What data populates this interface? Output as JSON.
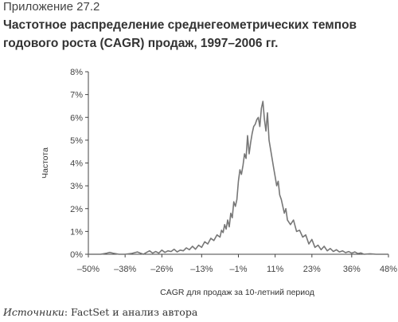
{
  "header": {
    "exhibit": "Приложение 27.2",
    "title": "Частотное распределение среднегеометрических темпов годового роста (CAGR) продаж, 1997–2006 гг."
  },
  "source": {
    "label": "Источники",
    "text": ": FactSet и анализ автора"
  },
  "chart_data": {
    "type": "line",
    "title": "Частотное распределение среднегеометрических темпов годового роста (CAGR) продаж, 1997–2006 гг.",
    "xlabel": "CAGR для продаж за 10-летний период",
    "ylabel": "Частота",
    "xlim": [
      -50,
      48
    ],
    "ylim": [
      0,
      8
    ],
    "x_ticks": [
      -50,
      -38,
      -26,
      -13,
      -1,
      11,
      23,
      36,
      48
    ],
    "x_tick_labels": [
      "–50%",
      "–38%",
      "–26%",
      "–13%",
      "–1%",
      "11%",
      "23%",
      "36%",
      "48%"
    ],
    "y_ticks": [
      0,
      1,
      2,
      3,
      4,
      5,
      6,
      7,
      8
    ],
    "y_tick_labels": [
      "0%",
      "1%",
      "2%",
      "3%",
      "4%",
      "5%",
      "6%",
      "7%",
      "8%"
    ],
    "grid": false,
    "line_color": "#777777",
    "series": [
      {
        "x": [
          -50,
          -46,
          -44,
          -43,
          -42,
          -40,
          -38,
          -36,
          -34,
          -33,
          -32,
          -31,
          -30,
          -29,
          -28,
          -27,
          -26,
          -25,
          -24,
          -23,
          -22,
          -21,
          -20,
          -19,
          -18,
          -17,
          -16,
          -15,
          -14,
          -13,
          -12,
          -11,
          -10,
          -9,
          -8,
          -7,
          -6.5,
          -6,
          -5.5,
          -5,
          -4.5,
          -4,
          -3.5,
          -3,
          -2.5,
          -2,
          -1.5,
          -1,
          -0.5,
          0,
          0.5,
          1,
          1.5,
          2,
          2.5,
          3,
          3.5,
          4,
          4.5,
          5,
          5.5,
          6,
          6.5,
          7,
          7.5,
          8,
          8.5,
          9,
          9.5,
          10,
          10.5,
          11,
          11.5,
          12,
          12.5,
          13,
          13.5,
          14,
          14.5,
          15,
          16,
          17,
          18,
          19,
          20,
          21,
          22,
          23,
          24,
          25,
          26,
          27,
          28,
          29,
          30,
          31,
          32,
          33,
          34,
          35,
          36,
          37,
          38,
          39,
          40,
          42,
          44,
          46,
          48
        ],
        "y": [
          0,
          0,
          0.05,
          0.08,
          0.05,
          0,
          0,
          0.03,
          0.1,
          0.05,
          0,
          0.08,
          0.15,
          0.05,
          0.12,
          0.05,
          0.18,
          0.08,
          0.15,
          0.12,
          0.22,
          0.1,
          0.18,
          0.15,
          0.28,
          0.2,
          0.35,
          0.22,
          0.4,
          0.3,
          0.55,
          0.45,
          0.7,
          0.6,
          0.85,
          0.75,
          1.05,
          0.95,
          1.3,
          1.1,
          1.5,
          1.2,
          1.8,
          1.6,
          2.3,
          2.1,
          2.4,
          3.2,
          3.7,
          3.5,
          3.9,
          4.4,
          4.2,
          5.2,
          4.4,
          4.9,
          5.3,
          5.6,
          5.7,
          5.9,
          6.0,
          5.6,
          6.4,
          6.7,
          5.9,
          5.4,
          6.2,
          5.0,
          4.6,
          4.2,
          3.8,
          3.4,
          3.0,
          3.2,
          2.6,
          2.4,
          2.1,
          1.8,
          2.0,
          1.5,
          1.3,
          1.5,
          1.0,
          1.05,
          0.75,
          0.85,
          0.45,
          0.65,
          0.3,
          0.4,
          0.2,
          0.35,
          0.15,
          0.25,
          0.12,
          0.2,
          0.1,
          0.15,
          0.07,
          0.12,
          0.05,
          0.1,
          0.03,
          0.06,
          0,
          0.02,
          0,
          0,
          0
        ]
      }
    ]
  }
}
